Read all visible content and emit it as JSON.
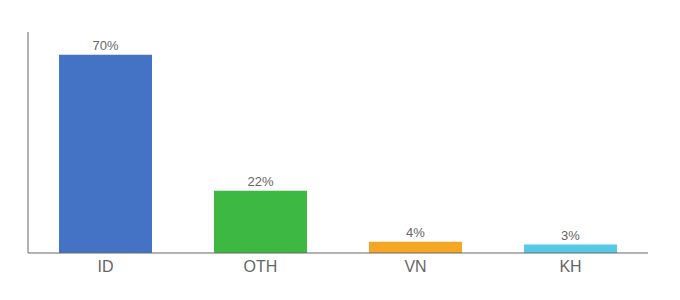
{
  "chart_data": {
    "type": "bar",
    "categories": [
      "ID",
      "OTH",
      "VN",
      "KH"
    ],
    "values": [
      70,
      22,
      4,
      3
    ],
    "value_labels": [
      "70%",
      "22%",
      "4%",
      "3%"
    ],
    "colors": [
      "#4472c4",
      "#3db843",
      "#f5a623",
      "#56c8e8"
    ],
    "ylim": [
      0,
      78
    ],
    "data_labels": true,
    "tick_labels": "x",
    "grid": false
  }
}
